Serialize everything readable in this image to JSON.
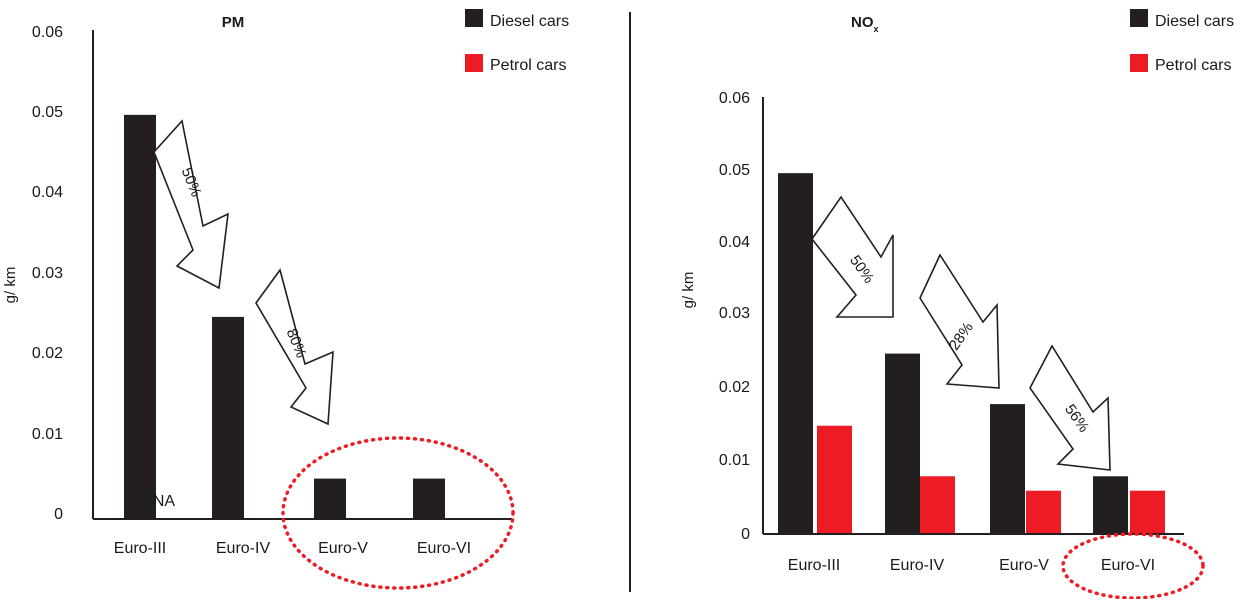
{
  "chart_data": [
    {
      "type": "bar",
      "title": "PM",
      "ylabel": "g/ km",
      "ylim": [
        0,
        0.06
      ],
      "yticks": [
        "0",
        "0.01",
        "0.02",
        "0.03",
        "0.04",
        "0.05",
        "0.06"
      ],
      "categories": [
        "Euro-III",
        "Euro-IV",
        "Euro-V",
        "Euro-VI"
      ],
      "legend": [
        "Diesel cars",
        "Petrol cars"
      ],
      "series": [
        {
          "name": "Diesel cars",
          "color": "#231f20",
          "values": [
            0.05,
            0.025,
            0.005,
            0.005
          ]
        },
        {
          "name": "Petrol cars",
          "color": "#ed1c24",
          "values": [
            null,
            null,
            null,
            null
          ]
        }
      ],
      "annotations": [
        "NA",
        "50%",
        "80%"
      ],
      "highlight": "Euro-V and Euro-VI circled with red dotted ellipse"
    },
    {
      "type": "bar",
      "title": "NO",
      "title_sub": "x",
      "ylabel": "g/ km",
      "ylim": [
        0,
        0.06
      ],
      "yticks": [
        "0",
        "0.01",
        "0.02",
        "0.03",
        "0.04",
        "0.05",
        "0.06"
      ],
      "categories": [
        "Euro-III",
        "Euro-IV",
        "Euro-V",
        "Euro-VI"
      ],
      "legend": [
        "Diesel cars",
        "Petrol cars"
      ],
      "series": [
        {
          "name": "Diesel cars",
          "color": "#231f20",
          "values": [
            0.05,
            0.025,
            0.018,
            0.008
          ]
        },
        {
          "name": "Petrol cars",
          "color": "#ed1c24",
          "values": [
            0.015,
            0.008,
            0.006,
            0.006
          ]
        }
      ],
      "annotations": [
        "50%",
        "28%",
        "56%"
      ],
      "highlight": "Euro-VI circled with red dotted ellipse"
    }
  ]
}
